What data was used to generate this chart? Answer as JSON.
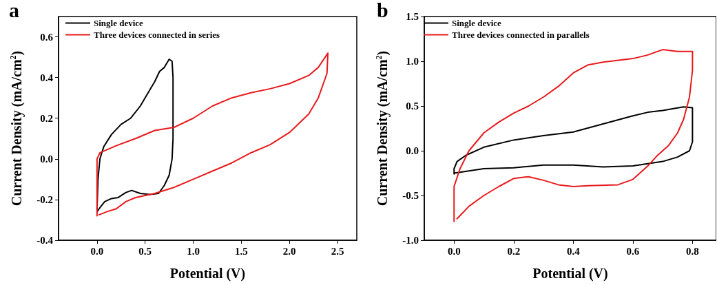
{
  "chart_data": [
    {
      "type": "line",
      "title": "a",
      "xlabel": "Potential (V)",
      "ylabel": "Current Density (mA/cm$^{2}$)",
      "xlim": [
        -0.4,
        2.7
      ],
      "xticks": [
        {
          "value": 0,
          "label": "0.0"
        },
        0.5,
        {
          "value": 1,
          "label": "1.0"
        },
        1.5,
        {
          "value": 2,
          "label": "2.0"
        },
        2.5
      ],
      "ylim": [
        -0.4,
        0.7
      ],
      "yticks": [
        -0.4,
        -0.2,
        {
          "value": 0,
          "label": "0.0"
        },
        0.2,
        0.4,
        0.6
      ],
      "grid": false,
      "legend": "top left",
      "marker": "none",
      "line_style": "solid",
      "series": [
        {
          "name": "Single device",
          "color": "#000000",
          "x": [
            0,
            0.01,
            0.03,
            0.07,
            0.15,
            0.25,
            0.35,
            0.45,
            0.55,
            0.6,
            0.65,
            0.7,
            0.75,
            0.78,
            0.79,
            0.79,
            0.78,
            0.75,
            0.7,
            0.64,
            0.55,
            0.45,
            0.36,
            0.3,
            0.22,
            0.15,
            0.08,
            0.03,
            0
          ],
          "values": [
            -0.25,
            -0.1,
            0.0,
            0.06,
            0.12,
            0.17,
            0.2,
            0.26,
            0.34,
            0.38,
            0.43,
            0.45,
            0.49,
            0.48,
            0.4,
            0.1,
            0.0,
            -0.08,
            -0.13,
            -0.17,
            -0.175,
            -0.17,
            -0.155,
            -0.165,
            -0.19,
            -0.195,
            -0.21,
            -0.24,
            -0.26
          ]
        },
        {
          "name": "Three devices connected in series",
          "color": "#e8191c",
          "x": [
            0,
            0,
            0.03,
            0.2,
            0.4,
            0.6,
            0.8,
            1.0,
            1.2,
            1.4,
            1.6,
            1.8,
            2.0,
            2.2,
            2.3,
            2.4,
            2.39,
            2.3,
            2.2,
            2.0,
            1.8,
            1.6,
            1.4,
            1.2,
            1.0,
            0.8,
            0.6,
            0.4,
            0.3,
            0.2,
            0.1,
            0.02
          ],
          "values": [
            -0.28,
            0.0,
            0.03,
            0.065,
            0.1,
            0.14,
            0.155,
            0.2,
            0.26,
            0.3,
            0.325,
            0.345,
            0.37,
            0.41,
            0.45,
            0.52,
            0.42,
            0.3,
            0.22,
            0.13,
            0.07,
            0.03,
            -0.02,
            -0.06,
            -0.1,
            -0.14,
            -0.17,
            -0.19,
            -0.21,
            -0.245,
            -0.26,
            -0.275
          ]
        }
      ]
    },
    {
      "type": "line",
      "title": "b",
      "xlabel": "Potential (V)",
      "ylabel": "Current Density (mA/cm$^{2}$)",
      "xlim": [
        -0.1,
        0.88
      ],
      "xticks": [
        {
          "value": 0,
          "label": "0.0"
        },
        0.2,
        0.4,
        0.6,
        0.8
      ],
      "ylim": [
        -1.0,
        1.5
      ],
      "yticks": [
        {
          "value": -1,
          "label": "-1.0"
        },
        -0.5,
        {
          "value": 0,
          "label": "0.0"
        },
        0.5,
        {
          "value": 1,
          "label": "1.0"
        },
        1.5
      ],
      "grid": false,
      "legend": "top left",
      "marker": "none",
      "line_style": "solid",
      "series": [
        {
          "name": "Single device",
          "color": "#000000",
          "x": [
            0,
            0,
            0.01,
            0.04,
            0.1,
            0.2,
            0.3,
            0.4,
            0.5,
            0.6,
            0.65,
            0.7,
            0.77,
            0.8,
            0.8,
            0.79,
            0.75,
            0.7,
            0.6,
            0.5,
            0.4,
            0.3,
            0.2,
            0.1,
            0
          ],
          "values": [
            -0.26,
            -0.2,
            -0.12,
            -0.05,
            0.04,
            0.12,
            0.17,
            0.21,
            0.3,
            0.39,
            0.43,
            0.45,
            0.49,
            0.48,
            0.1,
            0.0,
            -0.07,
            -0.12,
            -0.17,
            -0.18,
            -0.16,
            -0.16,
            -0.19,
            -0.2,
            -0.25
          ]
        },
        {
          "name": "Three devices connected in parallels",
          "color": "#e8191c",
          "x": [
            0,
            0,
            0.02,
            0.05,
            0.1,
            0.15,
            0.2,
            0.25,
            0.3,
            0.35,
            0.4,
            0.45,
            0.5,
            0.6,
            0.65,
            0.7,
            0.75,
            0.8,
            0.8,
            0.79,
            0.77,
            0.75,
            0.72,
            0.68,
            0.65,
            0.6,
            0.55,
            0.45,
            0.4,
            0.35,
            0.3,
            0.25,
            0.2,
            0.15,
            0.1,
            0.05,
            0.01
          ],
          "values": [
            -0.79,
            -0.4,
            -0.2,
            0.0,
            0.2,
            0.32,
            0.42,
            0.5,
            0.6,
            0.72,
            0.87,
            0.96,
            0.99,
            1.03,
            1.07,
            1.13,
            1.11,
            1.11,
            0.9,
            0.6,
            0.35,
            0.2,
            0.06,
            -0.06,
            -0.17,
            -0.32,
            -0.38,
            -0.39,
            -0.4,
            -0.38,
            -0.33,
            -0.29,
            -0.31,
            -0.4,
            -0.5,
            -0.62,
            -0.76
          ]
        }
      ]
    }
  ]
}
